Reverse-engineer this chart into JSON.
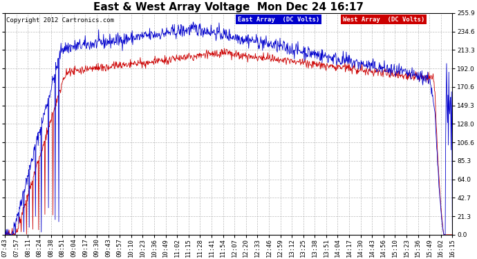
{
  "title": "East & West Array Voltage  Mon Dec 24 16:17",
  "copyright": "Copyright 2012 Cartronics.com",
  "legend_east": "East Array  (DC Volts)",
  "legend_west": "West Array  (DC Volts)",
  "east_color": "#0000cc",
  "west_color": "#cc0000",
  "background_color": "#ffffff",
  "plot_bg_color": "#ffffff",
  "grid_color": "#aaaaaa",
  "ylim": [
    0.0,
    255.9
  ],
  "yticks": [
    0.0,
    21.3,
    42.7,
    64.0,
    85.3,
    106.6,
    128.0,
    149.3,
    170.6,
    192.0,
    213.3,
    234.6,
    255.9
  ],
  "xtick_labels": [
    "07:43",
    "07:57",
    "08:11",
    "08:24",
    "08:38",
    "08:51",
    "09:04",
    "09:17",
    "09:30",
    "09:43",
    "09:57",
    "10:10",
    "10:23",
    "10:36",
    "10:49",
    "11:02",
    "11:15",
    "11:28",
    "11:41",
    "11:54",
    "12:07",
    "12:20",
    "12:33",
    "12:46",
    "12:59",
    "13:12",
    "13:25",
    "13:38",
    "13:51",
    "14:04",
    "14:17",
    "14:30",
    "14:43",
    "14:56",
    "15:10",
    "15:23",
    "15:36",
    "15:49",
    "16:02",
    "16:15"
  ],
  "title_fontsize": 11,
  "label_fontsize": 6.5,
  "copyright_fontsize": 6.5,
  "line_width": 0.6
}
